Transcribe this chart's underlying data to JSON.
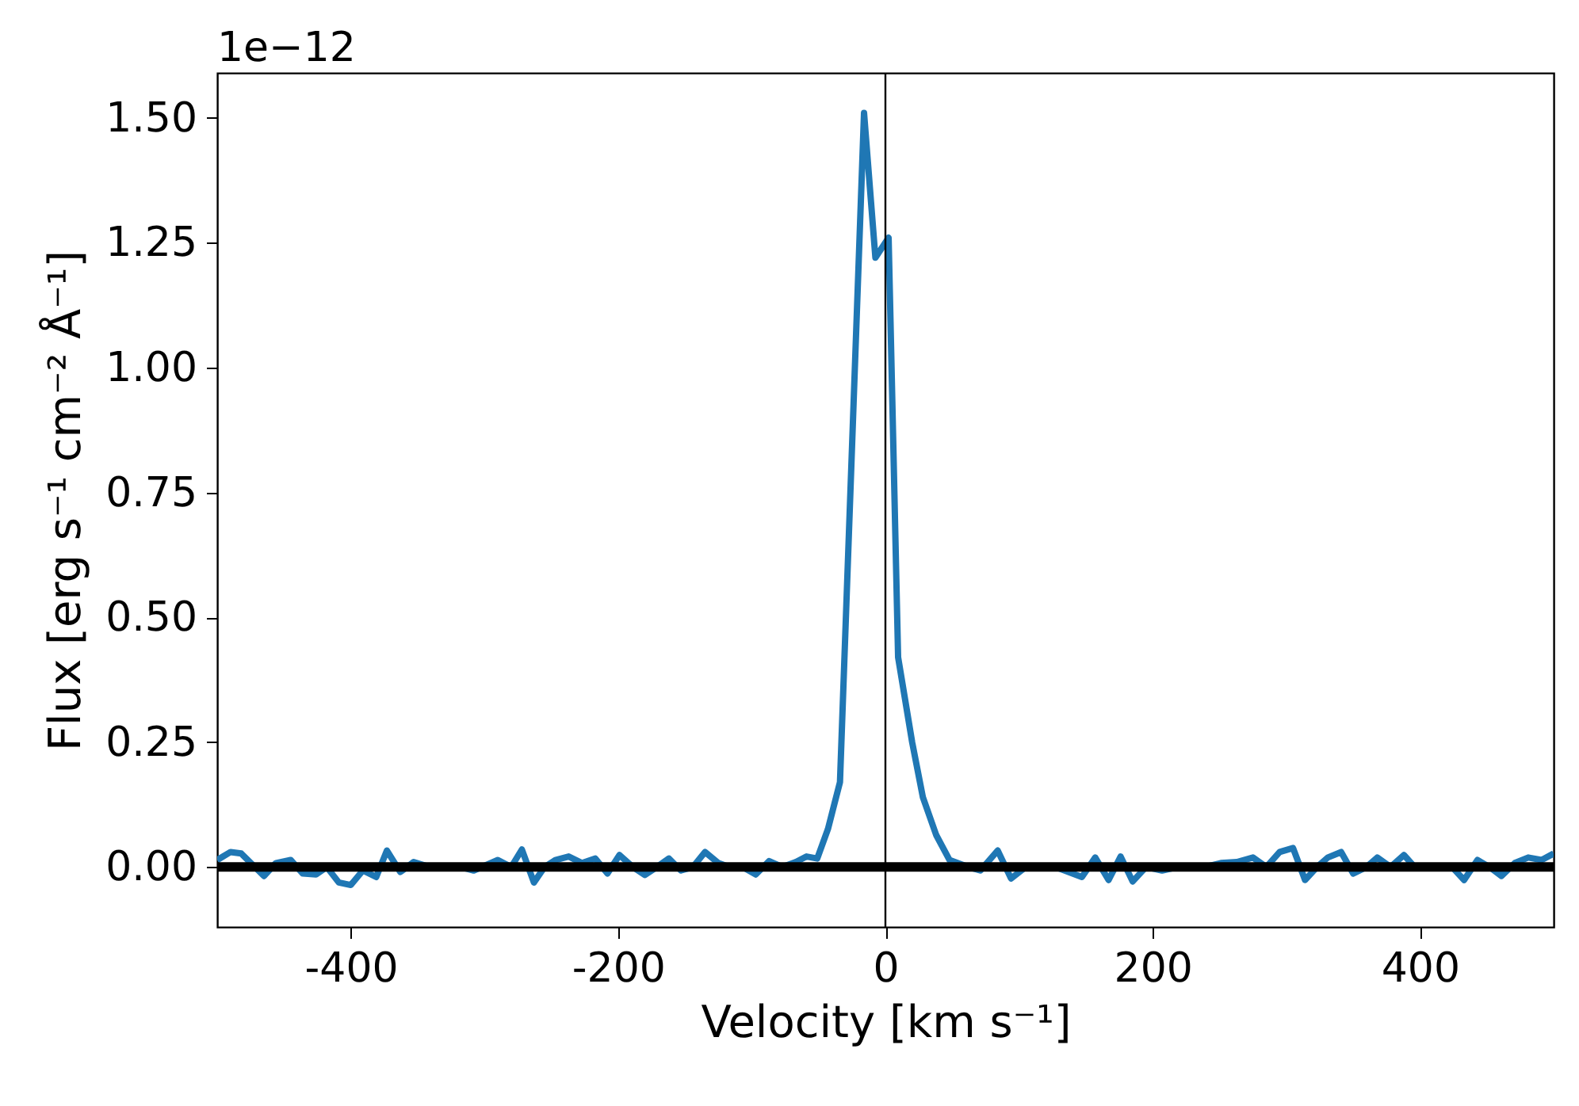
{
  "chart_data": {
    "type": "line",
    "xlabel": "Velocity [km s⁻¹]",
    "ylabel": "Flux [erg s⁻¹ cm⁻² Å⁻¹]",
    "annotations": [
      "1e−12"
    ],
    "xlim": [
      -500,
      500
    ],
    "xticks": [
      -400,
      -200,
      0,
      200,
      400
    ],
    "ylim": [
      -0.12,
      1.59
    ],
    "yticks": [
      {
        "value": 0,
        "label": "0.00"
      },
      {
        "value": 0.25,
        "label": "0.25"
      },
      {
        "value": 0.5,
        "label": "0.50"
      },
      {
        "value": 0.75,
        "label": "0.75"
      },
      {
        "value": 1,
        "label": "1.00"
      },
      {
        "value": 1.25,
        "label": "1.25"
      },
      {
        "value": 1.5,
        "label": "1.50"
      }
    ],
    "grid": false,
    "ref_lines": [
      {
        "axis": "y",
        "value": 0,
        "color": "#000000"
      },
      {
        "axis": "x",
        "value": 0,
        "color": "#000000"
      }
    ],
    "series": [
      {
        "color": "#1f77b4",
        "x": [
          -500,
          -490,
          -482,
          -465,
          -456,
          -445,
          -436,
          -426,
          -418,
          -409,
          -400,
          -391,
          -381,
          -373,
          -363,
          -353,
          -341,
          -330,
          -318,
          -308,
          -290,
          -280,
          -272,
          -263,
          -255,
          -247,
          -237,
          -227,
          -217,
          -208,
          -199,
          -189,
          -180,
          -171,
          -162,
          -153,
          -144,
          -135,
          -125,
          -117,
          -107,
          -97,
          -87,
          -77,
          -67,
          -59,
          -51,
          -43,
          -34,
          -16,
          -7.5,
          2.4,
          9.5,
          20,
          28,
          38,
          48,
          62,
          71,
          84,
          94,
          105,
          117,
          127,
          147,
          157,
          167,
          176,
          185,
          195,
          207,
          219,
          229,
          239,
          251,
          263,
          275,
          285,
          295,
          305,
          314,
          323,
          331,
          341,
          350,
          360,
          368,
          378,
          388,
          396,
          406,
          416,
          424,
          433,
          443,
          452,
          461,
          471,
          481,
          491,
          500
        ],
        "values": [
          0.014,
          0.03,
          0.027,
          -0.018,
          0.008,
          0.014,
          -0.013,
          -0.015,
          0,
          -0.031,
          -0.036,
          -0.007,
          -0.02,
          0.033,
          -0.01,
          0.01,
          0,
          0,
          0,
          -0.007,
          0.014,
          0,
          0.035,
          -0.031,
          0,
          0.014,
          0.021,
          0.008,
          0.017,
          -0.013,
          0.024,
          0,
          -0.016,
          0,
          0.017,
          -0.007,
          0,
          0.03,
          0.008,
          0,
          0,
          -0.015,
          0.012,
          0,
          0.01,
          0.021,
          0.017,
          0.076,
          0.17,
          1.51,
          1.22,
          1.26,
          0.42,
          0.25,
          0.14,
          0.064,
          0.014,
          0,
          -0.007,
          0.033,
          -0.023,
          0,
          0,
          0,
          -0.02,
          0.019,
          -0.026,
          0.021,
          -0.029,
          0,
          -0.007,
          0,
          0,
          0,
          0.008,
          0.01,
          0.019,
          0,
          0.03,
          0.038,
          -0.026,
          0,
          0.019,
          0.03,
          -0.013,
          0,
          0.019,
          0,
          0.024,
          0,
          0,
          0,
          0,
          -0.026,
          0.014,
          0,
          -0.018,
          0.008,
          0.019,
          0.014,
          0.027
        ]
      }
    ]
  }
}
